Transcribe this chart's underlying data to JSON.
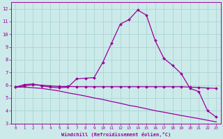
{
  "xlabel": "Windchill (Refroidissement éolien,°C)",
  "background_color": "#cceaea",
  "grid_color": "#aad4d4",
  "line_color": "#990099",
  "xlim": [
    -0.5,
    23.5
  ],
  "ylim": [
    3,
    12.5
  ],
  "yticks": [
    3,
    4,
    5,
    6,
    7,
    8,
    9,
    10,
    11,
    12
  ],
  "xticks": [
    0,
    1,
    2,
    3,
    4,
    5,
    6,
    7,
    8,
    9,
    10,
    11,
    12,
    13,
    14,
    15,
    16,
    17,
    18,
    19,
    20,
    21,
    22,
    23
  ],
  "series1_x": [
    0,
    1,
    2,
    3,
    4,
    5,
    6,
    7,
    8,
    9,
    10,
    11,
    12,
    13,
    14,
    15,
    16,
    17,
    18,
    19,
    20,
    21,
    22,
    23
  ],
  "series1_y": [
    5.85,
    6.05,
    6.1,
    5.95,
    5.85,
    5.8,
    5.85,
    6.5,
    6.55,
    6.6,
    7.8,
    9.3,
    10.8,
    11.15,
    11.9,
    11.5,
    9.5,
    8.1,
    7.55,
    6.9,
    5.75,
    5.5,
    4.0,
    3.5
  ],
  "series2_x": [
    0,
    1,
    2,
    3,
    4,
    5,
    6,
    7,
    8,
    9,
    10,
    11,
    12,
    13,
    14,
    15,
    16,
    17,
    18,
    19,
    20,
    21,
    22,
    23
  ],
  "series2_y": [
    5.85,
    5.95,
    6.05,
    6.0,
    5.95,
    5.9,
    5.9,
    5.88,
    5.88,
    5.88,
    5.88,
    5.88,
    5.88,
    5.88,
    5.88,
    5.88,
    5.88,
    5.88,
    5.88,
    5.88,
    5.85,
    5.82,
    5.78,
    5.75
  ],
  "series3_x": [
    0,
    1,
    2,
    3,
    4,
    5,
    6,
    7,
    8,
    9,
    10,
    11,
    12,
    13,
    14,
    15,
    16,
    17,
    18,
    19,
    20,
    21,
    22,
    23
  ],
  "series3_y": [
    5.85,
    5.85,
    5.8,
    5.75,
    5.65,
    5.55,
    5.4,
    5.28,
    5.15,
    5.0,
    4.88,
    4.72,
    4.58,
    4.42,
    4.3,
    4.15,
    4.0,
    3.88,
    3.75,
    3.62,
    3.5,
    3.38,
    3.25,
    3.12
  ]
}
